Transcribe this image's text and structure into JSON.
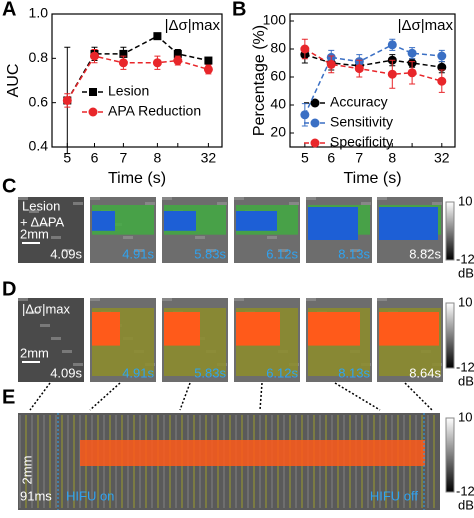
{
  "panel_labels": [
    "A",
    "B",
    "C",
    "D",
    "E"
  ],
  "chart_data": [
    {
      "type": "line",
      "annotation": "|Δσ|max",
      "y_label": "AUC",
      "x_label": "Time (s)",
      "categories": [
        "5",
        "6",
        "7",
        "8",
        null,
        "32"
      ],
      "ylim": [
        0.4,
        1.0
      ],
      "yticks": [
        0.4,
        0.6,
        0.8,
        {
          "value": 1.0,
          "label": "1.0"
        }
      ],
      "series": [
        {
          "name": "Lesion",
          "color": "#000000",
          "marker": "square",
          "values": [
            0.61,
            0.82,
            0.82,
            0.9,
            0.82,
            0.79
          ],
          "errors": [
            0.24,
            0.03,
            0.03,
            0.01,
            0.02,
            0.01
          ]
        },
        {
          "name": "APA Reduction",
          "color": "#e8262a",
          "marker": "circle",
          "values": [
            0.61,
            0.81,
            0.78,
            0.78,
            0.79,
            0.75
          ],
          "errors": [
            0.03,
            0.03,
            0.03,
            0.03,
            0.02,
            0.02
          ]
        }
      ]
    },
    {
      "type": "line",
      "annotation": "|Δσ|max",
      "y_label": "Percentage (%)",
      "x_label": "Time (s)",
      "categories": [
        "5",
        "6",
        "7",
        "8",
        null,
        "32"
      ],
      "ylim": [
        10,
        105
      ],
      "yticks": [
        20,
        40,
        60,
        80,
        100
      ],
      "series": [
        {
          "name": "Accuracy",
          "color": "#000000",
          "marker": "circle",
          "values": [
            76,
            70,
            68,
            72,
            70,
            67
          ],
          "errors": [
            6,
            5,
            4,
            4,
            3,
            4
          ]
        },
        {
          "name": "Sensitivity",
          "color": "#3a6fc4",
          "marker": "circle",
          "values": [
            33,
            74,
            71,
            83,
            77,
            75
          ],
          "errors": [
            8,
            5,
            5,
            4,
            4,
            4
          ]
        },
        {
          "name": "Specificity",
          "color": "#e8262a",
          "marker": "circle",
          "values": [
            80,
            69,
            66,
            62,
            63,
            57
          ],
          "errors": [
            7,
            6,
            6,
            10,
            8,
            8
          ]
        }
      ]
    }
  ],
  "panel_c": {
    "label_line1": "Lesion",
    "label_line2": "+ ΔAPA",
    "scale": "2mm",
    "times": [
      "4.09s",
      "4.91s",
      "5.83s",
      "6.12s",
      "8.13s",
      "8.82s"
    ]
  },
  "panel_d": {
    "label": "|Δσ|max",
    "scale": "2mm",
    "times": [
      "4.09s",
      "4.91s",
      "5.83s",
      "6.12s",
      "8.13s",
      "8.64s"
    ]
  },
  "panel_e": {
    "scale_y": "2mm",
    "scale_x": "91ms",
    "on": "HIFU on",
    "off": "HIFU off"
  },
  "colorbar": {
    "max": "10",
    "min": "-12",
    "unit": "dB"
  }
}
